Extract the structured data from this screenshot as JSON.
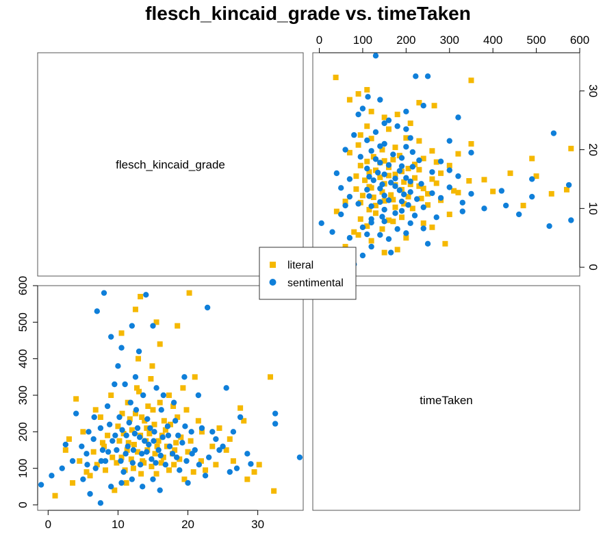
{
  "chart_data": {
    "type": "scatter",
    "title": "flesch_kincaid_grade vs. timeTaken",
    "variables": [
      "flesch_kincaid_grade",
      "timeTaken"
    ],
    "ranges": {
      "flesch_kincaid_grade": [
        -1.5,
        36.5
      ],
      "timeTaken": [
        -15,
        600
      ]
    },
    "ticks": {
      "flesch_kincaid_grade": [
        "0",
        "10",
        "20",
        "30"
      ],
      "timeTaken_bottom": [
        "0",
        "100",
        "200",
        "300",
        "400",
        "500",
        "600"
      ],
      "timeTaken_left": [
        "0",
        "100",
        "200",
        "300",
        "400",
        "500",
        "600"
      ],
      "flesch_kincaid_grade_right": [
        "0",
        "10",
        "20",
        "30"
      ]
    },
    "legend": {
      "placement": "center",
      "entries": [
        {
          "label": "literal",
          "marker": "square",
          "color": "#F5B800"
        },
        {
          "label": "sentimental",
          "marker": "circle",
          "color": "#0F7FD9"
        }
      ]
    },
    "series": [
      {
        "name": "literal",
        "marker": "square",
        "color": "#F5B800",
        "points": [
          [
            32.3,
            38
          ],
          [
            30.2,
            110
          ],
          [
            31.8,
            350
          ],
          [
            27.5,
            265
          ],
          [
            29.5,
            90
          ],
          [
            28.5,
            70
          ],
          [
            20.2,
            580
          ],
          [
            18.5,
            490
          ],
          [
            15.5,
            500
          ],
          [
            13.2,
            570
          ],
          [
            12.5,
            535
          ],
          [
            10.5,
            470
          ],
          [
            16.0,
            440
          ],
          [
            21.0,
            350
          ],
          [
            24.5,
            210
          ],
          [
            26.0,
            180
          ],
          [
            25.5,
            150
          ],
          [
            1.0,
            25
          ],
          [
            2.5,
            150
          ],
          [
            3.5,
            60
          ],
          [
            4.5,
            120
          ],
          [
            5.0,
            200
          ],
          [
            6.0,
            80
          ],
          [
            7.5,
            240
          ],
          [
            8.0,
            160
          ],
          [
            9.0,
            300
          ],
          [
            11.0,
            95
          ],
          [
            12.0,
            205
          ],
          [
            13.0,
            310
          ],
          [
            14.0,
            175
          ],
          [
            15.0,
            260
          ],
          [
            16.5,
            130
          ],
          [
            17.5,
            220
          ],
          [
            18.0,
            110
          ],
          [
            19.0,
            185
          ],
          [
            20.0,
            145
          ],
          [
            21.5,
            230
          ],
          [
            22.5,
            95
          ],
          [
            23.5,
            160
          ],
          [
            9.5,
            40
          ],
          [
            10.5,
            130
          ],
          [
            11.5,
            170
          ],
          [
            12.5,
            250
          ],
          [
            13.5,
            120
          ],
          [
            14.5,
            195
          ],
          [
            15.5,
            85
          ],
          [
            16.0,
            280
          ],
          [
            17.0,
            160
          ],
          [
            18.5,
            240
          ],
          [
            19.5,
            70
          ],
          [
            8.5,
            190
          ],
          [
            7.0,
            110
          ],
          [
            6.5,
            145
          ],
          [
            5.5,
            90
          ],
          [
            10.0,
            215
          ],
          [
            11.2,
            60
          ],
          [
            12.8,
            145
          ],
          [
            13.8,
            230
          ],
          [
            14.8,
            105
          ],
          [
            15.8,
            175
          ],
          [
            16.8,
            205
          ],
          [
            17.8,
            140
          ],
          [
            18.8,
            125
          ],
          [
            19.8,
            260
          ],
          [
            20.8,
            90
          ],
          [
            12.2,
            100
          ],
          [
            13.2,
            190
          ],
          [
            14.2,
            150
          ],
          [
            15.2,
            220
          ],
          [
            16.2,
            115
          ],
          [
            9.2,
            130
          ],
          [
            10.2,
            175
          ],
          [
            11.7,
            235
          ],
          [
            12.7,
            320
          ],
          [
            14.7,
            345
          ],
          [
            17.3,
            300
          ],
          [
            19.3,
            320
          ],
          [
            22.0,
            200
          ],
          [
            24.0,
            110
          ],
          [
            26.5,
            120
          ],
          [
            28.0,
            230
          ],
          [
            8.2,
            95
          ],
          [
            9.8,
            115
          ],
          [
            11.3,
            150
          ],
          [
            13.3,
            85
          ],
          [
            14.3,
            270
          ],
          [
            15.3,
            140
          ],
          [
            16.3,
            190
          ],
          [
            17.3,
            95
          ],
          [
            18.3,
            170
          ],
          [
            10.8,
            195
          ],
          [
            12.3,
            165
          ],
          [
            13.7,
            115
          ],
          [
            14.1,
            210
          ],
          [
            15.6,
            160
          ],
          [
            11.9,
            125
          ],
          [
            13.4,
            240
          ],
          [
            16.6,
            230
          ],
          [
            18.1,
            150
          ],
          [
            20.4,
            175
          ],
          [
            7.8,
            170
          ],
          [
            6.8,
            260
          ],
          [
            4.0,
            290
          ],
          [
            3.0,
            180
          ],
          [
            12.9,
            400
          ],
          [
            14.9,
            380
          ],
          [
            11.4,
            280
          ],
          [
            10.6,
            250
          ],
          [
            17.9,
            270
          ],
          [
            21.9,
            120
          ]
        ]
      },
      {
        "name": "sentimental",
        "marker": "circle",
        "color": "#0F7FD9",
        "points": [
          [
            36.0,
            130
          ],
          [
            32.5,
            250
          ],
          [
            32.5,
            222
          ],
          [
            28.5,
            140
          ],
          [
            29.0,
            112
          ],
          [
            27.0,
            100
          ],
          [
            22.8,
            540
          ],
          [
            -1.0,
            55
          ],
          [
            0.5,
            80
          ],
          [
            2.0,
            100
          ],
          [
            2.5,
            165
          ],
          [
            3.5,
            120
          ],
          [
            4.0,
            250
          ],
          [
            5.0,
            70
          ],
          [
            6.0,
            30
          ],
          [
            8.0,
            580
          ],
          [
            7.0,
            530
          ],
          [
            9.0,
            460
          ],
          [
            10.5,
            430
          ],
          [
            14.0,
            575
          ],
          [
            15.0,
            490
          ],
          [
            12.0,
            490
          ],
          [
            9.5,
            330
          ],
          [
            8.5,
            270
          ],
          [
            6.5,
            180
          ],
          [
            5.5,
            140
          ],
          [
            7.5,
            210
          ],
          [
            8.2,
            120
          ],
          [
            9.2,
            175
          ],
          [
            10.2,
            240
          ],
          [
            10.8,
            90
          ],
          [
            11.2,
            190
          ],
          [
            11.8,
            280
          ],
          [
            12.2,
            150
          ],
          [
            12.8,
            210
          ],
          [
            13.2,
            110
          ],
          [
            13.8,
            175
          ],
          [
            14.2,
            235
          ],
          [
            14.8,
            125
          ],
          [
            15.2,
            200
          ],
          [
            15.8,
            150
          ],
          [
            16.2,
            260
          ],
          [
            16.8,
            110
          ],
          [
            17.2,
            190
          ],
          [
            17.8,
            140
          ],
          [
            18.2,
            230
          ],
          [
            18.8,
            95
          ],
          [
            19.2,
            170
          ],
          [
            19.8,
            120
          ],
          [
            20.5,
            200
          ],
          [
            21.0,
            150
          ],
          [
            22.0,
            210
          ],
          [
            23.0,
            130
          ],
          [
            24.0,
            180
          ],
          [
            25.0,
            160
          ],
          [
            26.0,
            90
          ],
          [
            9.8,
            150
          ],
          [
            10.4,
            120
          ],
          [
            11.4,
            160
          ],
          [
            12.4,
            195
          ],
          [
            13.4,
            140
          ],
          [
            14.4,
            165
          ],
          [
            15.4,
            115
          ],
          [
            16.4,
            185
          ],
          [
            17.4,
            160
          ],
          [
            18.4,
            130
          ],
          [
            11.6,
            225
          ],
          [
            12.6,
            260
          ],
          [
            13.6,
            300
          ],
          [
            14.6,
            210
          ],
          [
            8.8,
            220
          ],
          [
            7.8,
            150
          ],
          [
            6.8,
            100
          ],
          [
            5.8,
            200
          ],
          [
            4.8,
            160
          ],
          [
            10.0,
            380
          ],
          [
            11.0,
            330
          ],
          [
            12.5,
            350
          ],
          [
            13.0,
            420
          ],
          [
            15.5,
            320
          ],
          [
            16.5,
            300
          ],
          [
            18.0,
            280
          ],
          [
            19.5,
            350
          ],
          [
            21.5,
            300
          ],
          [
            9.0,
            50
          ],
          [
            10.5,
            60
          ],
          [
            12.0,
            70
          ],
          [
            13.5,
            50
          ],
          [
            15.0,
            70
          ],
          [
            16.0,
            40
          ],
          [
            7.5,
            5
          ],
          [
            20.0,
            60
          ],
          [
            22.5,
            80
          ],
          [
            24.5,
            150
          ],
          [
            26.5,
            200
          ],
          [
            11.1,
            140
          ],
          [
            12.1,
            115
          ],
          [
            13.1,
            185
          ],
          [
            14.1,
            145
          ],
          [
            15.1,
            175
          ],
          [
            16.1,
            135
          ],
          [
            17.1,
            215
          ],
          [
            10.6,
            205
          ],
          [
            9.6,
            190
          ],
          [
            8.6,
            145
          ],
          [
            7.6,
            120
          ],
          [
            6.6,
            240
          ],
          [
            5.6,
            110
          ],
          [
            18.6,
            190
          ],
          [
            19.6,
            215
          ],
          [
            20.6,
            140
          ],
          [
            21.6,
            110
          ],
          [
            23.5,
            200
          ],
          [
            25.5,
            320
          ],
          [
            27.5,
            240
          ]
        ]
      }
    ]
  }
}
